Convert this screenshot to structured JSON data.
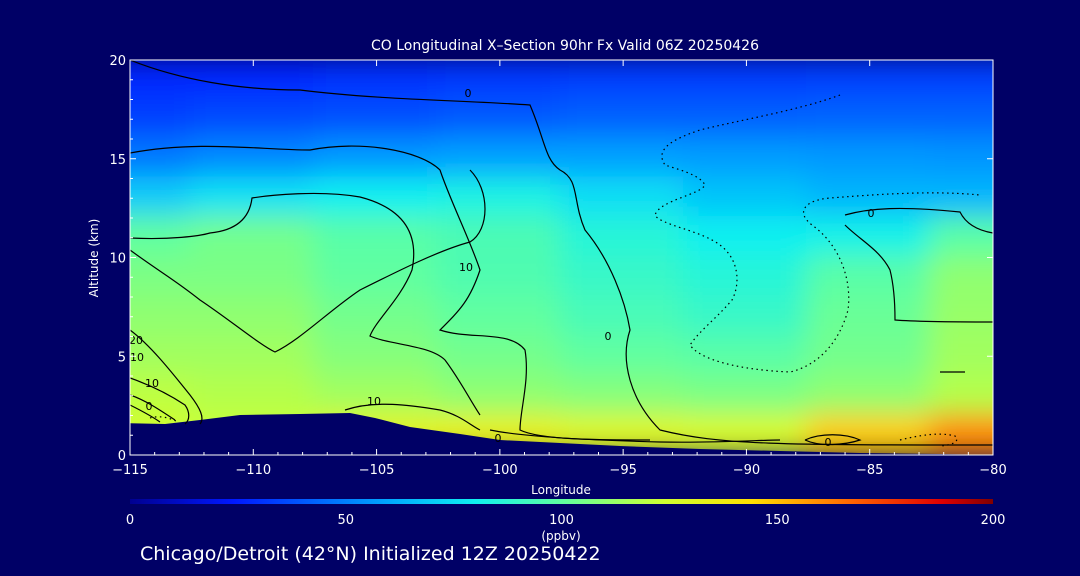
{
  "chart_data": {
    "type": "heatmap",
    "title": "CO Longitudinal X–Section 90hr  Fx Valid 06Z 20250426",
    "xlabel": "Longitude",
    "ylabel": "Altitude (km)",
    "xlim": [
      -115,
      -80
    ],
    "ylim": [
      0,
      20
    ],
    "x_ticks": [
      -115,
      -110,
      -105,
      -100,
      -95,
      -90,
      -85,
      -80
    ],
    "x_tick_labels": [
      "−115",
      "−110",
      "−105",
      "−100",
      "−95",
      "−90",
      "−85",
      "−80"
    ],
    "y_ticks": [
      0,
      5,
      10,
      15,
      20
    ],
    "y_tick_labels": [
      "0",
      "5",
      "10",
      "15",
      "20"
    ],
    "colorbar": {
      "ticks": [
        0,
        50,
        100,
        150,
        200
      ],
      "tick_labels": [
        "0",
        "50",
        "100",
        "150",
        "200"
      ],
      "unit_label": "(ppbv)",
      "range": [
        0,
        200
      ]
    },
    "field": {
      "longitudes": [
        -115,
        -110,
        -105,
        -100,
        -95,
        -90,
        -85,
        -80
      ],
      "altitude_bands": [
        {
          "altitude_km": 19,
          "co_ppbv": [
            28,
            28,
            30,
            32,
            33,
            33,
            34,
            34
          ]
        },
        {
          "altitude_km": 17,
          "co_ppbv": [
            34,
            36,
            38,
            40,
            42,
            42,
            43,
            43
          ]
        },
        {
          "altitude_km": 15,
          "co_ppbv": [
            48,
            52,
            56,
            58,
            58,
            57,
            56,
            55
          ]
        },
        {
          "altitude_km": 13,
          "co_ppbv": [
            70,
            76,
            80,
            83,
            75,
            68,
            64,
            64
          ]
        },
        {
          "altitude_km": 11,
          "co_ppbv": [
            100,
            104,
            98,
            95,
            86,
            80,
            82,
            98
          ]
        },
        {
          "altitude_km": 9,
          "co_ppbv": [
            106,
            106,
            100,
            96,
            90,
            86,
            98,
            110
          ]
        },
        {
          "altitude_km": 7,
          "co_ppbv": [
            110,
            110,
            104,
            100,
            94,
            90,
            102,
            112
          ]
        },
        {
          "altitude_km": 5,
          "co_ppbv": [
            114,
            114,
            108,
            104,
            100,
            98,
            104,
            114
          ]
        },
        {
          "altitude_km": 3,
          "co_ppbv": [
            120,
            118,
            114,
            110,
            108,
            106,
            110,
            118
          ]
        },
        {
          "altitude_km": 1,
          "co_ppbv": [
            125,
            122,
            132,
            134,
            130,
            128,
            148,
            160
          ]
        }
      ]
    },
    "contour_labels": [
      "0",
      "10",
      "0",
      "10",
      "0",
      "20",
      "10",
      "0",
      "10",
      "0",
      "0"
    ],
    "terrain": "surface shown as solid dark region"
  },
  "footer": "Chicago/Detroit (42°N) Initialized 12Z 20250422",
  "colors": {
    "background": "#000066",
    "axes": "#ffffff",
    "contour": "#000000"
  }
}
